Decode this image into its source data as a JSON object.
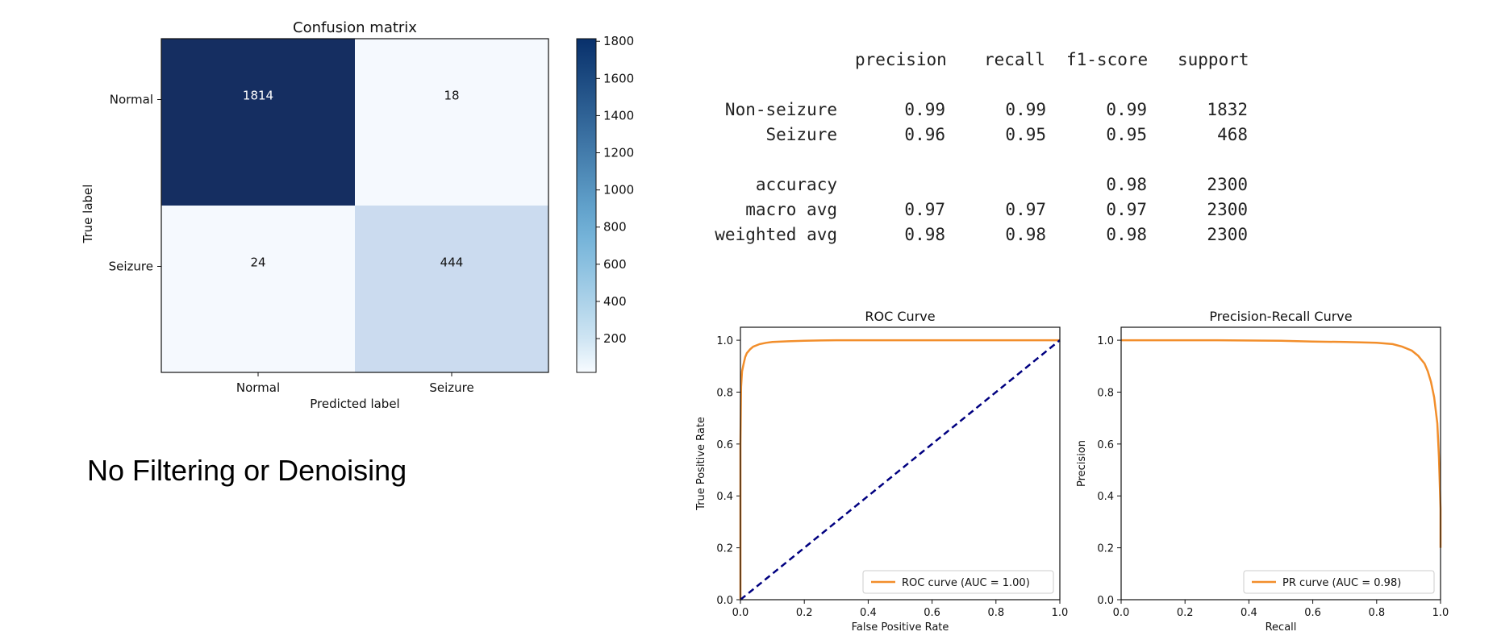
{
  "caption": "No Filtering or Denoising",
  "report": {
    "headers": [
      "precision",
      "recall",
      "f1-score",
      "support"
    ],
    "rows": [
      {
        "label": "Non-seizure",
        "precision": "0.99",
        "recall": "0.99",
        "f1": "0.99",
        "support": "1832"
      },
      {
        "label": "Seizure",
        "precision": "0.96",
        "recall": "0.95",
        "f1": "0.95",
        "support": "468"
      },
      {
        "label": "accuracy",
        "precision": "",
        "recall": "",
        "f1": "0.98",
        "support": "2300"
      },
      {
        "label": "macro avg",
        "precision": "0.97",
        "recall": "0.97",
        "f1": "0.97",
        "support": "2300"
      },
      {
        "label": "weighted avg",
        "precision": "0.98",
        "recall": "0.98",
        "f1": "0.98",
        "support": "2300"
      }
    ]
  },
  "chart_data": [
    {
      "type": "heatmap",
      "title": "Confusion matrix",
      "xlabel": "Predicted label",
      "ylabel": "True label",
      "x_categories": [
        "Normal",
        "Seizure"
      ],
      "y_categories": [
        "Normal",
        "Seizure"
      ],
      "values": [
        [
          1814,
          18
        ],
        [
          24,
          444
        ]
      ],
      "colormap": "Blues",
      "colorbar_ticks": [
        200,
        400,
        600,
        800,
        1000,
        1200,
        1400,
        1600,
        1800
      ],
      "colorbar_range": [
        18,
        1814
      ],
      "colors": {
        "dark": "#08306b",
        "light": "#f7fbff"
      }
    },
    {
      "type": "line",
      "title": "ROC Curve",
      "xlabel": "False Positive Rate",
      "ylabel": "True Positive Rate",
      "xlim": [
        0.0,
        1.0
      ],
      "ylim": [
        0.0,
        1.05
      ],
      "xticks": [
        "0.0",
        "0.2",
        "0.4",
        "0.6",
        "0.8",
        "1.0"
      ],
      "yticks": [
        "0.0",
        "0.2",
        "0.4",
        "0.6",
        "0.8",
        "1.0"
      ],
      "legend_position": "bottom-right",
      "series": [
        {
          "name": "ROC curve (AUC = 1.00)",
          "color": "#f28e2b",
          "x": [
            0.0,
            0.0,
            0.002,
            0.005,
            0.01,
            0.015,
            0.02,
            0.03,
            0.04,
            0.06,
            0.08,
            0.1,
            0.15,
            0.2,
            0.3,
            0.5,
            1.0
          ],
          "y": [
            0.0,
            0.6,
            0.82,
            0.88,
            0.91,
            0.935,
            0.95,
            0.965,
            0.975,
            0.985,
            0.99,
            0.993,
            0.996,
            0.998,
            1.0,
            1.0,
            1.0
          ]
        },
        {
          "style": "dashed",
          "color": "#000080",
          "x": [
            0.0,
            1.0
          ],
          "y": [
            0.0,
            1.0
          ]
        }
      ]
    },
    {
      "type": "line",
      "title": "Precision-Recall Curve",
      "xlabel": "Recall",
      "ylabel": "Precision",
      "xlim": [
        0.0,
        1.0
      ],
      "ylim": [
        0.0,
        1.05
      ],
      "xticks": [
        "0.0",
        "0.2",
        "0.4",
        "0.6",
        "0.8",
        "1.0"
      ],
      "yticks": [
        "0.0",
        "0.2",
        "0.4",
        "0.6",
        "0.8",
        "1.0"
      ],
      "legend_position": "bottom-right",
      "series": [
        {
          "name": "PR curve (AUC = 0.98)",
          "color": "#f28e2b",
          "x": [
            0.0,
            0.3,
            0.5,
            0.6,
            0.7,
            0.8,
            0.85,
            0.88,
            0.91,
            0.93,
            0.95,
            0.96,
            0.97,
            0.98,
            0.99,
            0.995,
            1.0,
            1.0
          ],
          "y": [
            1.0,
            1.0,
            0.998,
            0.995,
            0.993,
            0.99,
            0.985,
            0.975,
            0.96,
            0.94,
            0.91,
            0.88,
            0.84,
            0.78,
            0.68,
            0.55,
            0.35,
            0.2
          ]
        }
      ]
    }
  ]
}
